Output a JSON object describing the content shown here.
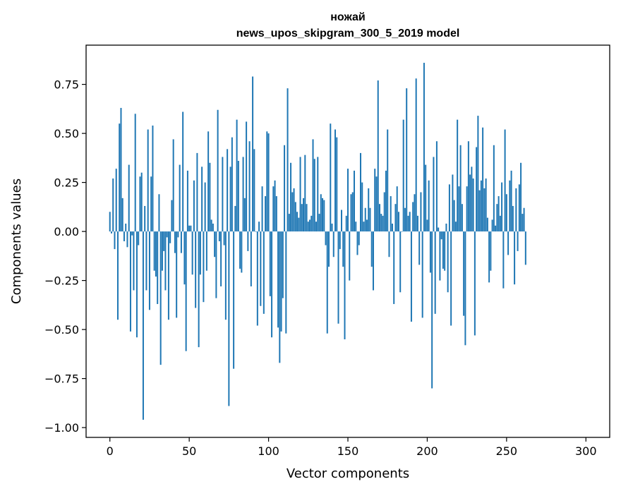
{
  "chart_data": {
    "type": "bar",
    "title": "ножай",
    "subtitle": "news_upos_skipgram_300_5_2019 model",
    "xlabel": "Vector components",
    "ylabel": "Components values",
    "xlim": [
      -15,
      315
    ],
    "ylim": [
      -1.05,
      0.95
    ],
    "xticks": [
      0,
      50,
      100,
      150,
      200,
      250,
      300
    ],
    "xtick_labels": [
      "0",
      "50",
      "100",
      "150",
      "200",
      "250",
      "300"
    ],
    "yticks": [
      0.75,
      0.5,
      0.25,
      0.0,
      -0.25,
      -0.5,
      -0.75,
      -1.0
    ],
    "ytick_labels": [
      "0.75",
      "0.50",
      "0.25",
      "0.00",
      "−0.25",
      "−0.50",
      "−0.75",
      "−1.00"
    ],
    "bar_color": "#1f77b4",
    "values": [
      0.1,
      -0.01,
      0.27,
      -0.09,
      0.32,
      -0.45,
      0.55,
      0.63,
      0.17,
      -0.05,
      0.04,
      -0.08,
      0.34,
      -0.51,
      -0.02,
      -0.3,
      0.6,
      -0.54,
      -0.07,
      0.28,
      0.3,
      -0.96,
      0.13,
      -0.3,
      0.52,
      -0.4,
      0.28,
      0.54,
      -0.2,
      -0.23,
      -0.37,
      0.19,
      -0.68,
      -0.2,
      -0.1,
      -0.3,
      -0.03,
      -0.45,
      -0.06,
      0.16,
      0.47,
      -0.11,
      -0.44,
      -0.03,
      0.34,
      -0.11,
      0.61,
      -0.27,
      -0.61,
      0.31,
      0.03,
      0.03,
      -0.22,
      0.26,
      -0.39,
      0.4,
      -0.59,
      -0.22,
      0.33,
      -0.36,
      0.25,
      -0.2,
      0.51,
      0.35,
      0.06,
      0.04,
      -0.13,
      -0.34,
      0.62,
      -0.05,
      -0.28,
      0.38,
      -0.07,
      -0.45,
      0.42,
      -0.89,
      0.33,
      0.48,
      -0.7,
      0.13,
      0.57,
      0.36,
      -0.19,
      -0.21,
      0.38,
      0.17,
      0.56,
      -0.1,
      0.46,
      -0.28,
      0.79,
      0.42,
      0.0,
      -0.48,
      0.05,
      -0.38,
      0.23,
      -0.42,
      0.18,
      0.51,
      0.5,
      -0.33,
      -0.54,
      0.23,
      0.26,
      0.18,
      -0.49,
      -0.67,
      -0.51,
      -0.34,
      0.44,
      -0.52,
      0.73,
      0.09,
      0.35,
      0.2,
      0.22,
      0.15,
      0.1,
      0.07,
      0.38,
      0.14,
      0.17,
      0.39,
      0.14,
      0.05,
      0.06,
      0.08,
      0.47,
      0.37,
      0.05,
      0.38,
      0.09,
      0.19,
      0.17,
      0.16,
      -0.07,
      -0.52,
      -0.18,
      0.55,
      0.04,
      -0.13,
      0.52,
      0.48,
      -0.47,
      -0.09,
      0.11,
      -0.18,
      -0.55,
      0.08,
      0.32,
      -0.25,
      0.19,
      0.2,
      0.31,
      0.05,
      -0.12,
      -0.07,
      0.4,
      0.25,
      0.05,
      0.12,
      0.06,
      0.22,
      0.12,
      -0.18,
      -0.3,
      0.32,
      0.28,
      0.77,
      0.14,
      0.09,
      0.08,
      0.2,
      0.31,
      0.52,
      -0.13,
      0.18,
      0.04,
      -0.37,
      0.14,
      0.23,
      0.1,
      -0.31,
      0.0,
      0.57,
      0.12,
      0.73,
      0.08,
      0.1,
      -0.46,
      0.15,
      0.19,
      0.78,
      0.08,
      -0.17,
      0.2,
      -0.44,
      0.86,
      0.34,
      0.06,
      0.26,
      -0.21,
      -0.8,
      0.38,
      -0.42,
      0.46,
      0.02,
      -0.25,
      -0.04,
      -0.19,
      -0.2,
      0.04,
      -0.31,
      0.24,
      -0.48,
      0.29,
      0.16,
      0.05,
      0.57,
      0.23,
      0.44,
      0.14,
      -0.43,
      -0.58,
      0.23,
      0.46,
      0.29,
      0.33,
      0.27,
      -0.53,
      0.43,
      0.59,
      0.21,
      0.26,
      0.53,
      0.22,
      0.27,
      0.07,
      -0.26,
      -0.2,
      0.06,
      0.44,
      0.03,
      0.14,
      0.18,
      0.08,
      0.25,
      -0.29,
      0.52,
      0.19,
      -0.12,
      0.26,
      0.31,
      0.13,
      -0.27,
      0.22,
      -0.1,
      0.24,
      0.35,
      0.09,
      0.12,
      -0.17
    ]
  }
}
